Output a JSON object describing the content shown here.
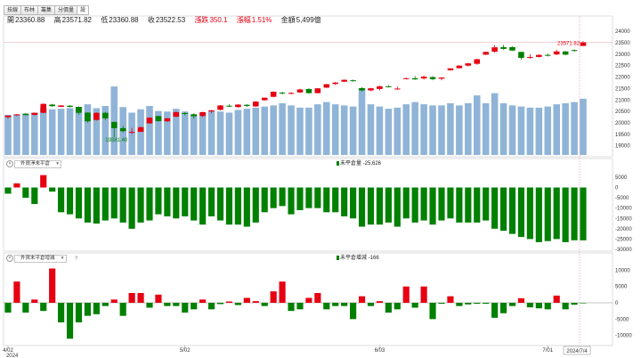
{
  "tabs": [
    {
      "label": "技線"
    },
    {
      "label": "布林"
    },
    {
      "label": "籌集"
    },
    {
      "label": "分價量"
    },
    {
      "label": "設"
    }
  ],
  "ohlc": {
    "open_label": "開",
    "open": "23360.88",
    "high_label": "高",
    "high": "23571.82",
    "low_label": "低",
    "low": "23360.88",
    "close_label": "收",
    "close": "23522.53",
    "change_label": "漲跌",
    "change": "350.1",
    "pct_label": "漲幅",
    "pct": "1.51%",
    "amount_label": "金額",
    "amount": "5,499億"
  },
  "panels": {
    "p2": {
      "select": "外資淨未平倉",
      "legend": "未平倉量 -25,626"
    },
    "p3": {
      "select": "外資未平倉增減",
      "help": "?",
      "legend": "未平倉增減 -166"
    }
  },
  "colors": {
    "up": "#e60012",
    "down": "#008000",
    "volume": "#8fb4d7",
    "bar2": "#008000"
  },
  "chart_data": [
    {
      "type": "candlestick",
      "ylim": [
        18600,
        24200
      ],
      "yticks": [
        19000,
        19500,
        20000,
        20500,
        21000,
        21500,
        22000,
        22500,
        23000,
        23500,
        24000
      ],
      "xticks": [
        {
          "i": 0,
          "label": "4/02"
        },
        {
          "i": 20,
          "label": "5/02"
        },
        {
          "i": 42,
          "label": "6/03"
        },
        {
          "i": 61,
          "label": "7/01"
        },
        {
          "i": 64,
          "label": "2024/7/4"
        }
      ],
      "year_label": "2024",
      "annotations": [
        {
          "i": 64,
          "label": "23571.82",
          "kind": "high"
        },
        {
          "i": 12,
          "label": "19381.40",
          "kind": "low"
        }
      ],
      "candles": [
        [
          20250,
          20330,
          20180,
          20320
        ],
        [
          20330,
          20390,
          20300,
          20370
        ],
        [
          20400,
          20430,
          20330,
          20340
        ],
        [
          20350,
          20450,
          20330,
          20440
        ],
        [
          20440,
          20850,
          20420,
          20830
        ],
        [
          20800,
          20830,
          20700,
          20730
        ],
        [
          20700,
          20780,
          20690,
          20760
        ],
        [
          20750,
          20780,
          20680,
          20700
        ],
        [
          20700,
          20720,
          20360,
          20440
        ],
        [
          20450,
          20460,
          20010,
          20070
        ],
        [
          20130,
          20460,
          20100,
          20440
        ],
        [
          20440,
          20480,
          20120,
          20200
        ],
        [
          20040,
          20060,
          19380,
          19770
        ],
        [
          19770,
          19870,
          19580,
          19640
        ],
        [
          19600,
          19780,
          19500,
          19610
        ],
        [
          19610,
          19850,
          19600,
          19810
        ],
        [
          19980,
          20250,
          19960,
          20230
        ],
        [
          20300,
          20310,
          20050,
          20080
        ],
        [
          20070,
          20220,
          20040,
          20200
        ],
        [
          20270,
          20500,
          20250,
          20470
        ],
        [
          20430,
          20480,
          20330,
          20420
        ],
        [
          20380,
          20420,
          20180,
          20290
        ],
        [
          20300,
          20490,
          20250,
          20470
        ],
        [
          20500,
          20560,
          20420,
          20550
        ],
        [
          20570,
          20780,
          20550,
          20760
        ],
        [
          20750,
          20810,
          20690,
          20720
        ],
        [
          20690,
          20820,
          20660,
          20800
        ],
        [
          20790,
          20820,
          20700,
          20740
        ],
        [
          20720,
          20950,
          20700,
          20930
        ],
        [
          20990,
          21110,
          20970,
          21100
        ],
        [
          21140,
          21380,
          21120,
          21360
        ],
        [
          21320,
          21360,
          21240,
          21290
        ],
        [
          21280,
          21340,
          21250,
          21310
        ],
        [
          21330,
          21490,
          21310,
          21460
        ],
        [
          21480,
          21510,
          21280,
          21300
        ],
        [
          21300,
          21520,
          21290,
          21510
        ],
        [
          21540,
          21700,
          21520,
          21690
        ],
        [
          21700,
          21790,
          21650,
          21760
        ],
        [
          21800,
          21900,
          21780,
          21880
        ],
        [
          21860,
          21890,
          21800,
          21850
        ],
        [
          21520,
          21560,
          21370,
          21420
        ],
        [
          21420,
          21530,
          21380,
          21510
        ],
        [
          21480,
          21620,
          21420,
          21600
        ],
        [
          21600,
          21650,
          21550,
          21560
        ],
        [
          21500,
          21590,
          21450,
          21500
        ],
        [
          21950,
          21980,
          21900,
          21950
        ],
        [
          21950,
          22050,
          21880,
          21900
        ],
        [
          21940,
          22070,
          21890,
          22020
        ],
        [
          22000,
          22040,
          21860,
          21910
        ],
        [
          21930,
          22000,
          21860,
          21980
        ],
        [
          22300,
          22390,
          22280,
          22380
        ],
        [
          22390,
          22520,
          22370,
          22500
        ],
        [
          22500,
          22620,
          22460,
          22600
        ],
        [
          22580,
          22800,
          22540,
          22780
        ],
        [
          22980,
          23120,
          22960,
          23100
        ],
        [
          23110,
          23400,
          23060,
          23300
        ],
        [
          23310,
          23410,
          23200,
          23230
        ],
        [
          23310,
          23340,
          23140,
          23160
        ],
        [
          23100,
          23100,
          22750,
          22840
        ],
        [
          22850,
          23000,
          22800,
          22880
        ],
        [
          22880,
          22990,
          22850,
          22970
        ],
        [
          22970,
          23030,
          22900,
          22950
        ],
        [
          22990,
          23200,
          22960,
          23120
        ],
        [
          23120,
          23140,
          22950,
          22980
        ],
        [
          23180,
          23210,
          23100,
          23160
        ],
        [
          23360,
          23572,
          23360,
          23522
        ]
      ],
      "volume": [
        3600,
        3650,
        3700,
        3800,
        4250,
        4100,
        4150,
        4200,
        4300,
        4550,
        4200,
        4400,
        6150,
        4300,
        3800,
        4100,
        4400,
        3950,
        3900,
        4150,
        3900,
        3600,
        3800,
        3950,
        3900,
        3800,
        4050,
        4150,
        4250,
        4350,
        4450,
        4650,
        4450,
        4250,
        4250,
        4550,
        4750,
        4550,
        4450,
        4350,
        6000,
        4550,
        4350,
        4150,
        4250,
        4550,
        4750,
        4550,
        4450,
        4450,
        4650,
        4450,
        4650,
        5350,
        4650,
        5550,
        4650,
        4450,
        4350,
        4250,
        4250,
        4350,
        4550,
        4650,
        4750,
        5050
      ]
    },
    {
      "type": "bar",
      "ylim": [
        -30000,
        8000
      ],
      "yticks": [
        5000,
        0,
        -5000,
        -10000,
        -15000,
        -20000,
        -25000,
        -30000
      ],
      "values": [
        -3000,
        2000,
        -5000,
        -8000,
        6000,
        -2000,
        -12000,
        -13000,
        -15000,
        -17000,
        -17500,
        -16000,
        -15000,
        -17000,
        -20000,
        -17000,
        -16000,
        -13000,
        -14000,
        -15000,
        -14000,
        -16000,
        -18000,
        -14000,
        -16000,
        -18000,
        -18000,
        -19000,
        -17000,
        -12000,
        -10000,
        -9000,
        -13000,
        -11000,
        -10000,
        -10000,
        -12000,
        -12000,
        -14000,
        -15000,
        -19000,
        -18000,
        -18000,
        -17000,
        -19000,
        -15000,
        -17000,
        -16000,
        -18000,
        -16000,
        -15000,
        -17000,
        -17000,
        -17000,
        -16000,
        -20000,
        -21000,
        -22500,
        -24000,
        -25000,
        -26500,
        -26000,
        -25000,
        -26500,
        -25600,
        -25626
      ]
    },
    {
      "type": "bar",
      "ylim": [
        -12000,
        12000
      ],
      "yticks": [
        10000,
        5000,
        0,
        -5000,
        -10000
      ],
      "values": [
        -3000,
        6500,
        -3000,
        1000,
        -2500,
        10500,
        -6000,
        -11000,
        -6000,
        -4000,
        -3500,
        -1000,
        1000,
        -4000,
        3000,
        3000,
        -1500,
        2500,
        -1000,
        -1000,
        -3000,
        -2000,
        1000,
        -2000,
        -400,
        400,
        -700,
        1500,
        500,
        -1000,
        3500,
        6500,
        -2500,
        -2000,
        1500,
        3000,
        -2000,
        -1000,
        -1000,
        -5000,
        2000,
        -1000,
        500,
        -3000,
        -2000,
        5000,
        -1500,
        5000,
        -5000,
        -300,
        2000,
        -1000,
        -500,
        -300,
        -300,
        -4600,
        -3200,
        -1000,
        1400,
        -1400,
        -1700,
        -2000,
        2200,
        -2000,
        -600,
        -166
      ]
    }
  ]
}
